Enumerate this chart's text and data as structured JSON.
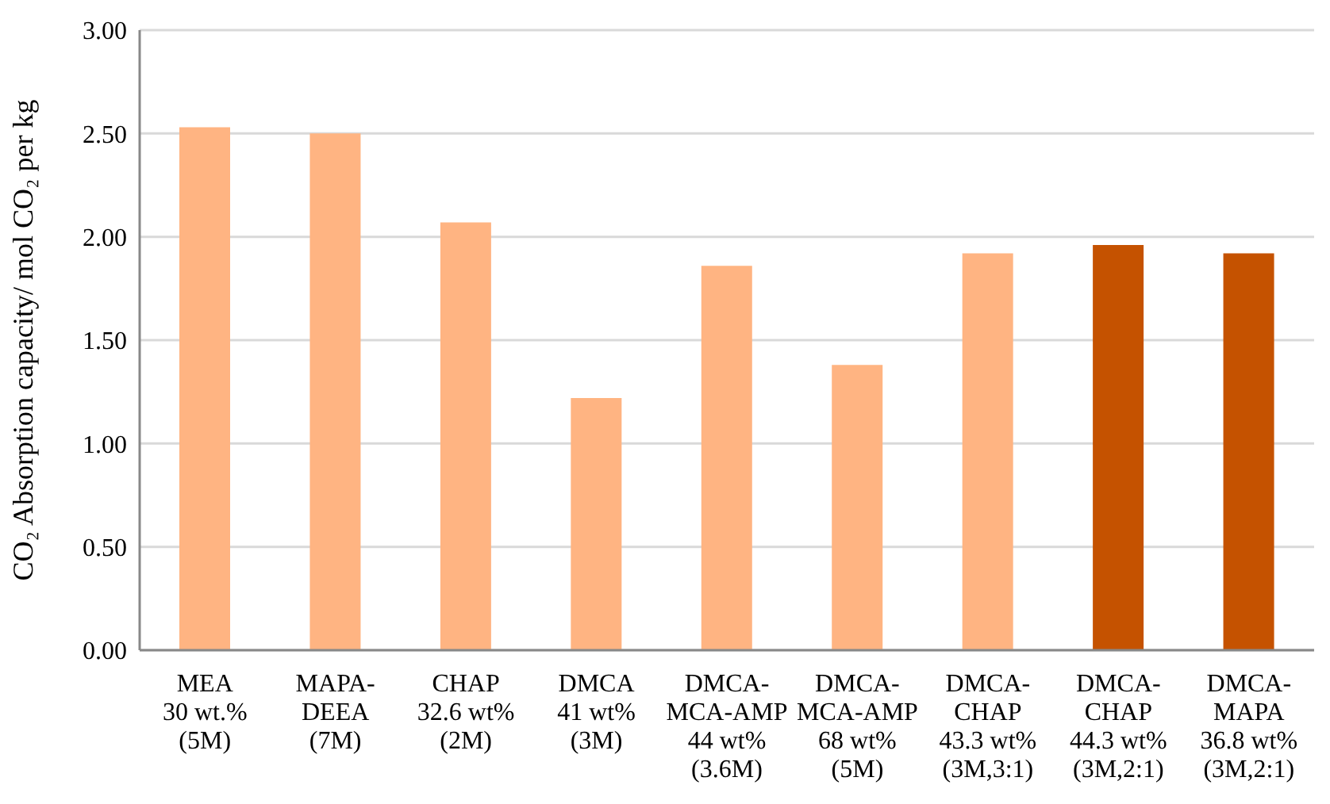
{
  "chart_data": {
    "type": "bar",
    "ylabel": "CO₂ Absorption capacity/ mol CO₂ per kg",
    "categories": [
      "MEA\n30 wt.%\n(5M)",
      "MAPA-\nDEEA\n(7M)",
      "CHAP\n32.6 wt%\n(2M)",
      "DMCA\n41 wt%\n(3M)",
      "DMCA-\nMCA-AMP\n44 wt%\n(3.6M)",
      "DMCA-\nMCA-AMP\n68 wt%\n(5M)",
      "DMCA-\nCHAP\n43.3 wt%\n(3M,3:1)",
      "DMCA-\nCHAP\n44.3 wt%\n(3M,2:1)",
      "DMCA-\nMAPA\n36.8 wt%\n(3M,2:1)"
    ],
    "values": [
      2.53,
      2.5,
      2.07,
      1.22,
      1.86,
      1.38,
      1.92,
      1.96,
      1.92
    ],
    "colors": [
      "#ffb482",
      "#ffb482",
      "#ffb482",
      "#ffb482",
      "#ffb482",
      "#ffb482",
      "#ffb482",
      "#c55200",
      "#c55200"
    ],
    "ylim": [
      0,
      3
    ],
    "yticks": [
      {
        "value": 0,
        "label": "0.00"
      },
      {
        "value": 0.5,
        "label": "0.50"
      },
      {
        "value": 1,
        "label": "1.00"
      },
      {
        "value": 1.5,
        "label": "1.50"
      },
      {
        "value": 2,
        "label": "2.00"
      },
      {
        "value": 2.5,
        "label": "2.50"
      },
      {
        "value": 3,
        "label": "3.00"
      }
    ],
    "grid": "y"
  }
}
